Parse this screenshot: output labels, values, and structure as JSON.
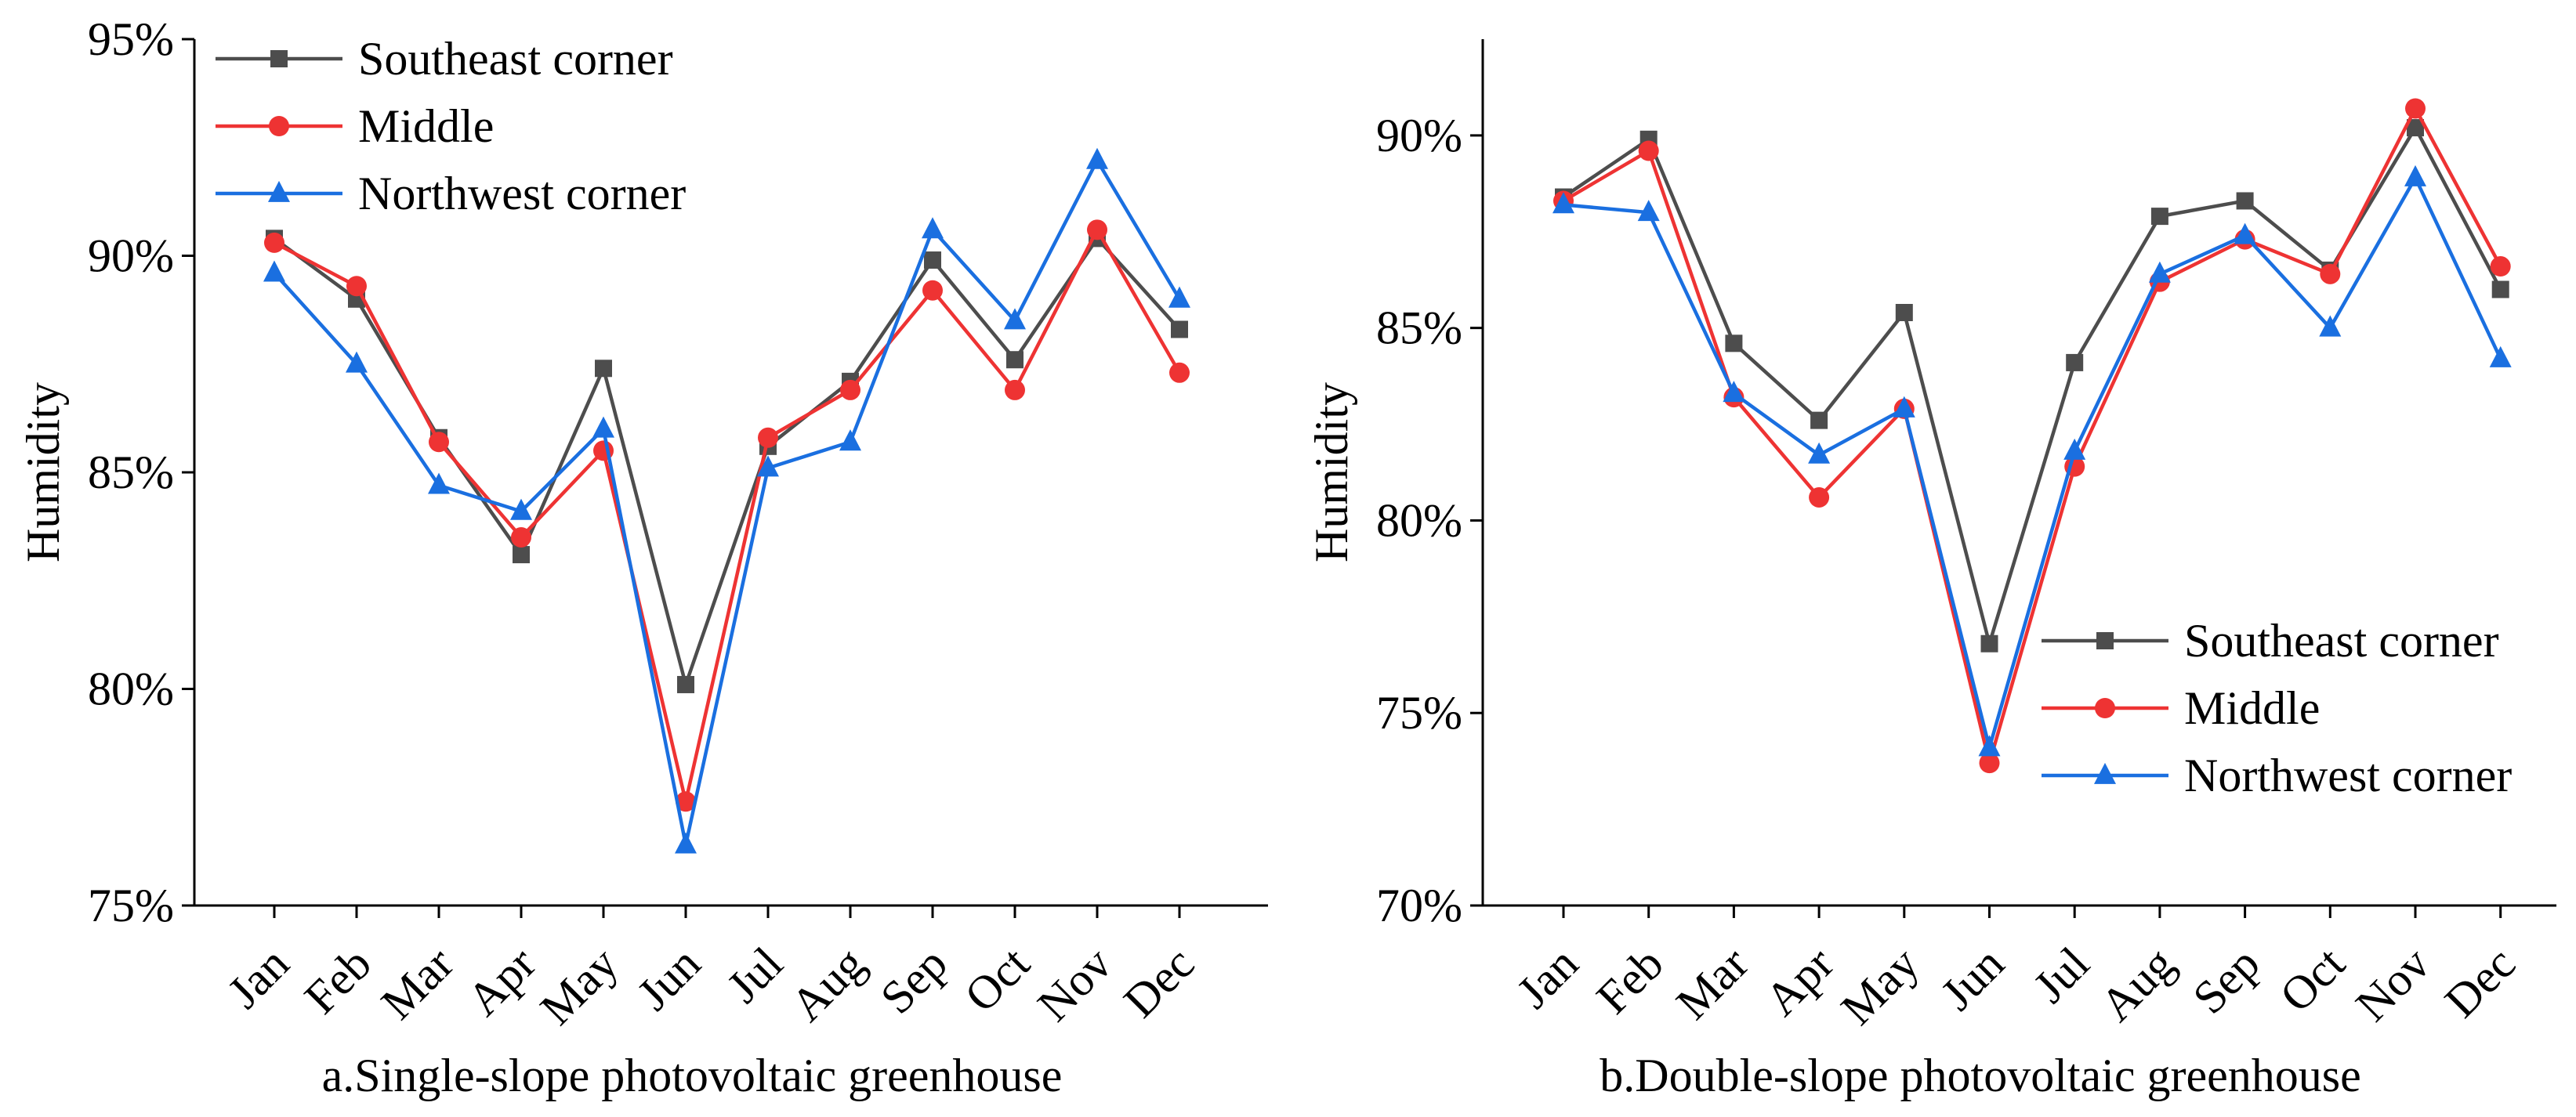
{
  "figure": {
    "panels": [
      {
        "caption": "a.Single-slope photovoltaic greenhouse",
        "ylabel": "Humidity",
        "legend_position": "top-left"
      },
      {
        "caption": "b.Double-slope photovoltaic greenhouse",
        "ylabel": "Humidity",
        "legend_position": "bottom-right"
      }
    ]
  },
  "chart_data": [
    {
      "type": "line",
      "title": "a.Single-slope photovoltaic greenhouse",
      "xlabel": "",
      "ylabel": "Humidity",
      "categories": [
        "Jan",
        "Feb",
        "Mar",
        "Apr",
        "May",
        "Jun",
        "Jul",
        "Aug",
        "Sep",
        "Oct",
        "Nov",
        "Dec"
      ],
      "ylim": [
        75,
        95
      ],
      "yticks": [
        75,
        80,
        85,
        90,
        95
      ],
      "ytick_labels": [
        "75%",
        "80%",
        "85%",
        "90%",
        "95%"
      ],
      "grid": false,
      "legend": "top-left",
      "series": [
        {
          "name": "Southeast corner",
          "color": "#4d4d4d",
          "marker": "square",
          "values": [
            90.4,
            89.0,
            85.8,
            83.1,
            87.4,
            80.1,
            85.6,
            87.1,
            89.9,
            87.6,
            90.4,
            88.3
          ]
        },
        {
          "name": "Middle",
          "color": "#ee3333",
          "marker": "circle",
          "values": [
            90.3,
            89.3,
            85.7,
            83.5,
            85.5,
            77.4,
            85.8,
            86.9,
            89.2,
            86.9,
            90.6,
            87.3
          ]
        },
        {
          "name": "Northwest corner",
          "color": "#1a6fe0",
          "marker": "triangle",
          "values": [
            89.6,
            87.5,
            84.7,
            84.1,
            86.0,
            76.4,
            85.1,
            85.7,
            90.6,
            88.5,
            92.2,
            89.0
          ]
        }
      ]
    },
    {
      "type": "line",
      "title": "b.Double-slope photovoltaic greenhouse",
      "xlabel": "",
      "ylabel": "Humidity",
      "categories": [
        "Jan",
        "Feb",
        "Mar",
        "Apr",
        "May",
        "Jun",
        "Jul",
        "Aug",
        "Sep",
        "Oct",
        "Nov",
        "Dec"
      ],
      "ylim": [
        70,
        92.5
      ],
      "yticks": [
        70,
        75,
        80,
        85,
        90
      ],
      "ytick_labels": [
        "70%",
        "75%",
        "80%",
        "85%",
        "90%"
      ],
      "grid": false,
      "legend": "bottom-right",
      "series": [
        {
          "name": "Southeast corner",
          "color": "#4d4d4d",
          "marker": "square",
          "values": [
            88.4,
            89.9,
            84.6,
            82.6,
            85.4,
            76.8,
            84.1,
            87.9,
            88.3,
            86.5,
            90.2,
            86.0
          ]
        },
        {
          "name": "Middle",
          "color": "#ee3333",
          "marker": "circle",
          "values": [
            88.3,
            89.6,
            83.2,
            80.6,
            82.9,
            73.7,
            81.4,
            86.2,
            87.3,
            86.4,
            90.7,
            86.6
          ]
        },
        {
          "name": "Northwest corner",
          "color": "#1a6fe0",
          "marker": "triangle",
          "values": [
            88.2,
            88.0,
            83.3,
            81.7,
            82.9,
            74.1,
            81.8,
            86.4,
            87.4,
            85.0,
            88.9,
            84.2
          ]
        }
      ]
    }
  ]
}
